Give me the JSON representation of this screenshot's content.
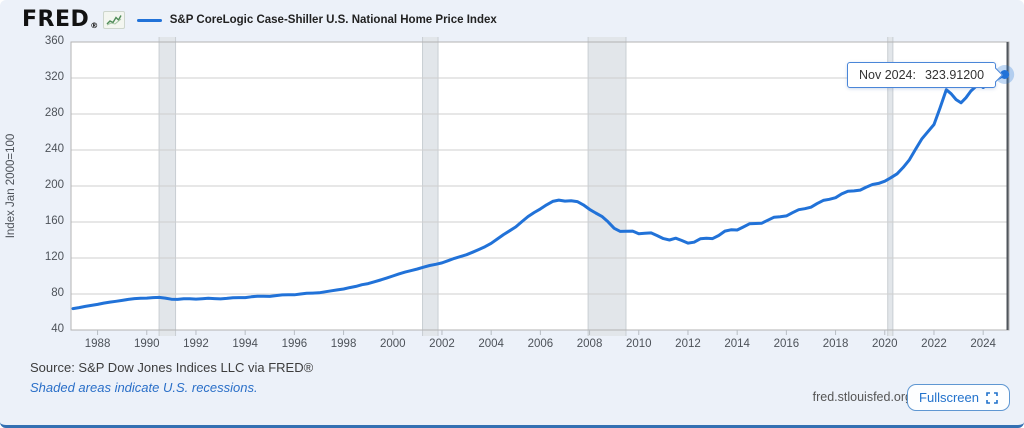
{
  "header": {
    "logo": "FRED",
    "logo_reg": "®",
    "legend": "S&P CoreLogic Case-Shiller U.S. National Home Price Index"
  },
  "tooltip": {
    "label": "Nov 2024:",
    "value": "323.91200"
  },
  "footer": {
    "source": "Source: S&P Dow Jones Indices LLC via FRED®",
    "note": "Shaded areas indicate U.S. recessions.",
    "site": "fred.stlouisfed.org",
    "fullscreen": "Fullscreen"
  },
  "colors": {
    "line": "#2172d8",
    "recession": "#e2e6ea",
    "recession_edge": "#c9ced3",
    "grid": "#cfcfcf",
    "border": "#b3b3b3",
    "axis_text": "#4d5259",
    "crosshair": "#50565c",
    "halo": "rgba(33,114,216,0.28)",
    "accent": "#2272cc",
    "background": "#ecf1f9"
  },
  "chart_data": {
    "type": "line",
    "title": "S&P CoreLogic Case-Shiller U.S. National Home Price Index",
    "xlabel": "",
    "ylabel": "Index Jan 2000=100",
    "ylim": [
      40,
      360
    ],
    "yticks": [
      40,
      80,
      120,
      160,
      200,
      240,
      280,
      320,
      360
    ],
    "xticks": [
      1988,
      1990,
      1992,
      1994,
      1996,
      1998,
      2000,
      2002,
      2004,
      2006,
      2008,
      2010,
      2012,
      2014,
      2016,
      2018,
      2020,
      2022,
      2024
    ],
    "xlim": [
      1986.92,
      2025.05
    ],
    "grid": true,
    "legend_position": "top-left",
    "recessions": [
      [
        1990.5,
        1991.17
      ],
      [
        2001.21,
        2001.84
      ],
      [
        2007.94,
        2009.48
      ],
      [
        2020.12,
        2020.33
      ]
    ],
    "last_point": {
      "date": "Nov 2024",
      "value": 323.912
    },
    "series": [
      {
        "name": "S&P CoreLogic Case-Shiller U.S. National Home Price Index",
        "points": [
          [
            1987.0,
            63.8
          ],
          [
            1987.25,
            64.9
          ],
          [
            1987.5,
            66.2
          ],
          [
            1987.75,
            67.3
          ],
          [
            1988.0,
            68.5
          ],
          [
            1988.25,
            69.9
          ],
          [
            1988.5,
            71.0
          ],
          [
            1988.75,
            71.9
          ],
          [
            1989.0,
            72.9
          ],
          [
            1989.25,
            74.0
          ],
          [
            1989.5,
            74.9
          ],
          [
            1989.75,
            75.3
          ],
          [
            1990.0,
            75.4
          ],
          [
            1990.25,
            76.0
          ],
          [
            1990.5,
            76.2
          ],
          [
            1990.75,
            75.4
          ],
          [
            1991.0,
            74.2
          ],
          [
            1991.25,
            74.0
          ],
          [
            1991.5,
            74.8
          ],
          [
            1991.75,
            74.7
          ],
          [
            1992.0,
            74.3
          ],
          [
            1992.25,
            74.8
          ],
          [
            1992.5,
            75.2
          ],
          [
            1992.75,
            74.9
          ],
          [
            1993.0,
            74.6
          ],
          [
            1993.25,
            75.1
          ],
          [
            1993.5,
            75.9
          ],
          [
            1993.75,
            76.0
          ],
          [
            1994.0,
            76.0
          ],
          [
            1994.25,
            76.9
          ],
          [
            1994.5,
            77.6
          ],
          [
            1994.75,
            77.5
          ],
          [
            1995.0,
            77.3
          ],
          [
            1995.25,
            78.2
          ],
          [
            1995.5,
            79.0
          ],
          [
            1995.75,
            79.1
          ],
          [
            1996.0,
            79.1
          ],
          [
            1996.25,
            80.0
          ],
          [
            1996.5,
            80.8
          ],
          [
            1996.75,
            81.0
          ],
          [
            1997.0,
            81.3
          ],
          [
            1997.25,
            82.4
          ],
          [
            1997.5,
            83.6
          ],
          [
            1997.75,
            84.5
          ],
          [
            1998.0,
            85.6
          ],
          [
            1998.25,
            87.1
          ],
          [
            1998.5,
            88.5
          ],
          [
            1998.75,
            90.3
          ],
          [
            1999.0,
            91.6
          ],
          [
            1999.25,
            93.6
          ],
          [
            1999.5,
            95.6
          ],
          [
            1999.75,
            97.7
          ],
          [
            2000.0,
            100.0
          ],
          [
            2000.25,
            102.3
          ],
          [
            2000.5,
            104.3
          ],
          [
            2000.75,
            106.0
          ],
          [
            2001.0,
            107.8
          ],
          [
            2001.25,
            109.8
          ],
          [
            2001.5,
            111.7
          ],
          [
            2001.75,
            113.0
          ],
          [
            2002.0,
            114.5
          ],
          [
            2002.25,
            117.0
          ],
          [
            2002.5,
            119.6
          ],
          [
            2002.75,
            121.6
          ],
          [
            2003.0,
            123.7
          ],
          [
            2003.25,
            126.4
          ],
          [
            2003.5,
            129.4
          ],
          [
            2003.75,
            132.6
          ],
          [
            2004.0,
            136.3
          ],
          [
            2004.25,
            141.1
          ],
          [
            2004.5,
            146.0
          ],
          [
            2004.75,
            150.2
          ],
          [
            2005.0,
            154.6
          ],
          [
            2005.25,
            160.4
          ],
          [
            2005.5,
            166.1
          ],
          [
            2005.75,
            170.6
          ],
          [
            2006.0,
            174.6
          ],
          [
            2006.25,
            179.0
          ],
          [
            2006.5,
            182.9
          ],
          [
            2006.75,
            184.3
          ],
          [
            2007.0,
            183.2
          ],
          [
            2007.25,
            183.5
          ],
          [
            2007.5,
            182.7
          ],
          [
            2007.75,
            179.0
          ],
          [
            2008.0,
            174.0
          ],
          [
            2008.25,
            170.0
          ],
          [
            2008.5,
            166.2
          ],
          [
            2008.75,
            160.2
          ],
          [
            2009.0,
            153.0
          ],
          [
            2009.25,
            149.5
          ],
          [
            2009.5,
            149.8
          ],
          [
            2009.75,
            149.9
          ],
          [
            2010.0,
            147.0
          ],
          [
            2010.25,
            147.5
          ],
          [
            2010.5,
            147.9
          ],
          [
            2010.75,
            144.9
          ],
          [
            2011.0,
            141.5
          ],
          [
            2011.25,
            140.0
          ],
          [
            2011.5,
            142.0
          ],
          [
            2011.75,
            139.4
          ],
          [
            2012.0,
            136.6
          ],
          [
            2012.25,
            137.6
          ],
          [
            2012.5,
            141.3
          ],
          [
            2012.75,
            142.0
          ],
          [
            2013.0,
            141.5
          ],
          [
            2013.25,
            145.0
          ],
          [
            2013.5,
            149.9
          ],
          [
            2013.75,
            151.3
          ],
          [
            2014.0,
            151.1
          ],
          [
            2014.25,
            154.4
          ],
          [
            2014.5,
            158.0
          ],
          [
            2014.75,
            158.3
          ],
          [
            2015.0,
            158.7
          ],
          [
            2015.25,
            162.0
          ],
          [
            2015.5,
            165.3
          ],
          [
            2015.75,
            165.9
          ],
          [
            2016.0,
            166.8
          ],
          [
            2016.25,
            170.3
          ],
          [
            2016.5,
            173.7
          ],
          [
            2016.75,
            174.8
          ],
          [
            2017.0,
            176.4
          ],
          [
            2017.25,
            180.5
          ],
          [
            2017.5,
            184.0
          ],
          [
            2017.75,
            185.2
          ],
          [
            2018.0,
            187.0
          ],
          [
            2018.25,
            191.2
          ],
          [
            2018.5,
            194.2
          ],
          [
            2018.75,
            194.6
          ],
          [
            2019.0,
            195.4
          ],
          [
            2019.25,
            198.8
          ],
          [
            2019.5,
            201.7
          ],
          [
            2019.75,
            202.9
          ],
          [
            2020.0,
            205.3
          ],
          [
            2020.25,
            209.2
          ],
          [
            2020.5,
            213.5
          ],
          [
            2020.75,
            220.7
          ],
          [
            2021.0,
            229.1
          ],
          [
            2021.25,
            240.7
          ],
          [
            2021.5,
            252.1
          ],
          [
            2021.75,
            260.2
          ],
          [
            2022.0,
            268.3
          ],
          [
            2022.25,
            287.0
          ],
          [
            2022.5,
            307.0
          ],
          [
            2022.7,
            302.5
          ],
          [
            2022.9,
            296.0
          ],
          [
            2023.1,
            292.5
          ],
          [
            2023.3,
            298.0
          ],
          [
            2023.5,
            305.5
          ],
          [
            2023.7,
            310.5
          ],
          [
            2023.85,
            312.5
          ],
          [
            2024.0,
            309.5
          ],
          [
            2024.15,
            312.0
          ],
          [
            2024.3,
            318.0
          ],
          [
            2024.45,
            321.0
          ],
          [
            2024.55,
            318.5
          ],
          [
            2024.7,
            321.0
          ],
          [
            2024.875,
            323.912
          ]
        ]
      }
    ]
  }
}
